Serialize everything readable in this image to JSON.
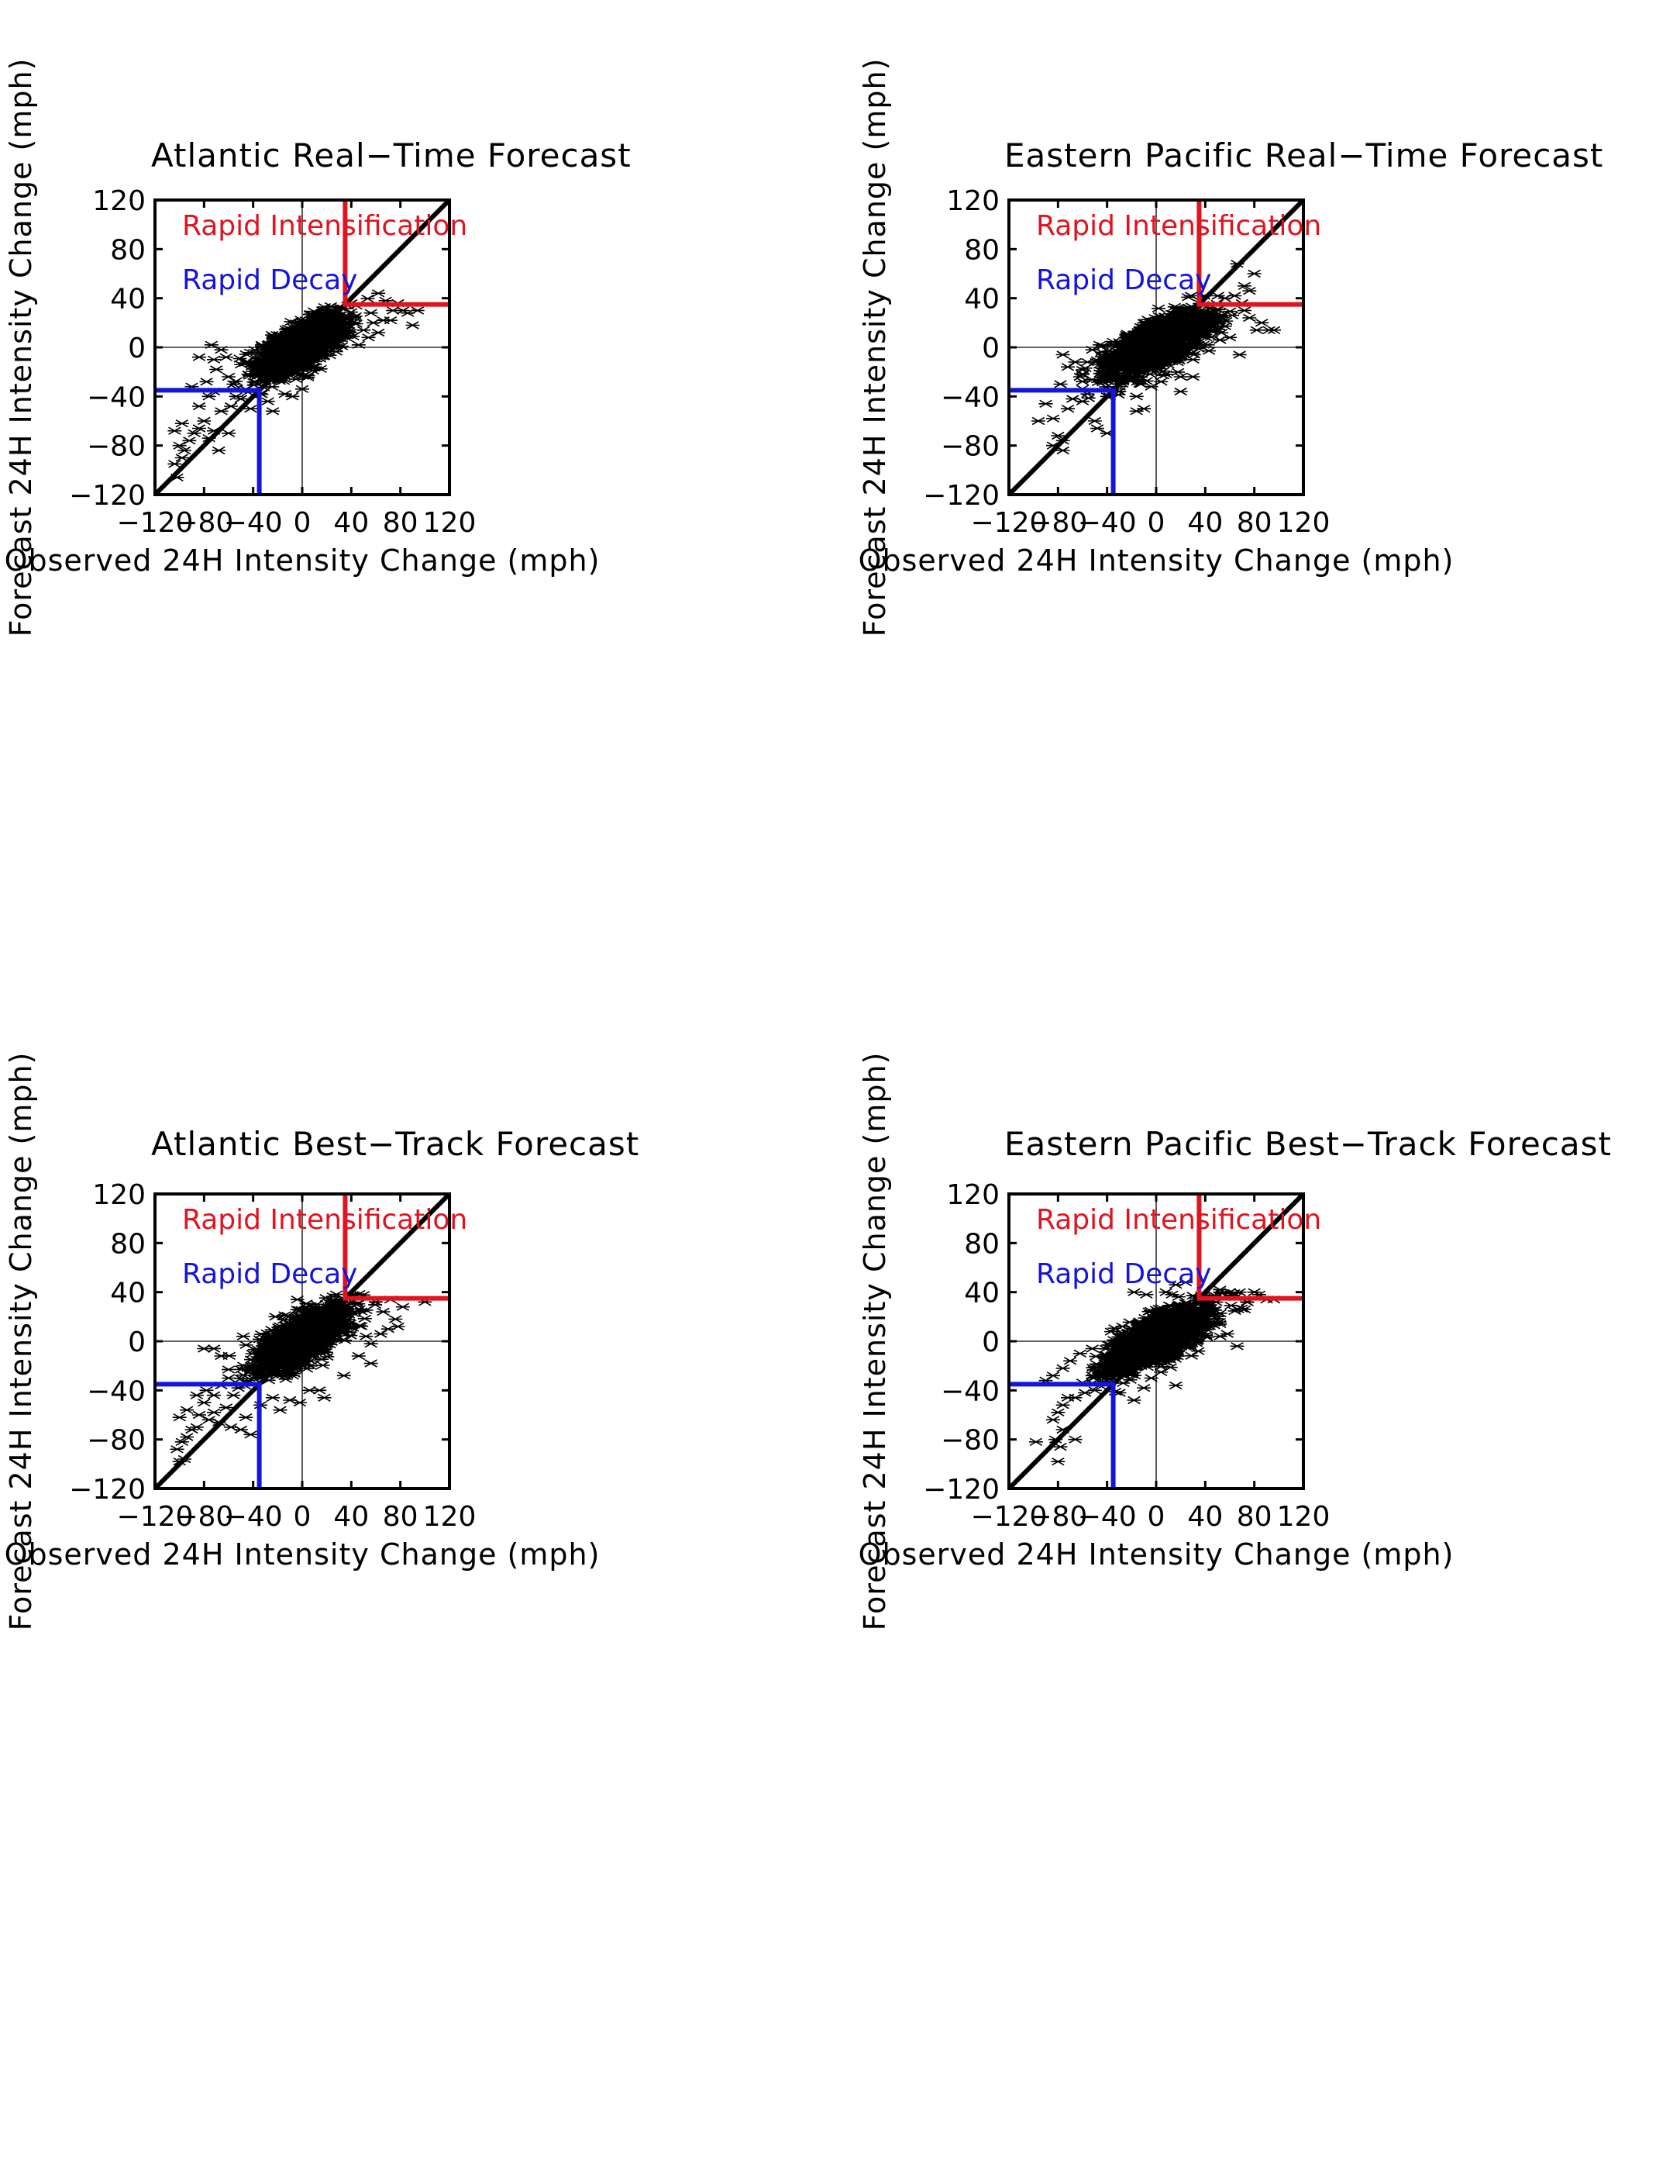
{
  "chart_data": [
    {
      "type": "scatter",
      "title": "Atlantic Real−Time Forecast",
      "xlabel": "Observed 24H Intensity Change (mph)",
      "ylabel": "Forecast 24H Intensity Change (mph)",
      "xlim": [
        -120,
        120
      ],
      "ylim": [
        -120,
        120
      ],
      "xticks": [
        "−120",
        "−80",
        "−40",
        "0",
        "40",
        "80",
        "120"
      ],
      "yticks": [
        "−120",
        "−80",
        "−40",
        "0",
        "40",
        "80",
        "120"
      ],
      "legend": [
        {
          "label": "Rapid Intensification",
          "color": "#e0141e"
        },
        {
          "label": "Rapid Decay",
          "color": "#1414dc"
        }
      ],
      "legend_position": "top-left",
      "thresholds": {
        "rapid_intensification": 35,
        "rapid_decay": -35
      },
      "cloud": {
        "x_mean": 0,
        "x_sd": 17,
        "slope": 0.48,
        "y_sd": 8.5,
        "n": 1600
      },
      "outliers": [
        [
          -102,
          -106
        ],
        [
          -104,
          -95
        ],
        [
          -98,
          -90
        ],
        [
          -96,
          -84
        ],
        [
          -100,
          -80
        ],
        [
          -92,
          -76
        ],
        [
          -104,
          -68
        ],
        [
          -98,
          -62
        ],
        [
          -88,
          -70
        ],
        [
          -84,
          -66
        ],
        [
          -80,
          -60
        ],
        [
          -76,
          -74
        ],
        [
          -72,
          -68
        ],
        [
          -68,
          -84
        ],
        [
          -84,
          -48
        ],
        [
          -76,
          -40
        ],
        [
          -72,
          -36
        ],
        [
          -78,
          -28
        ],
        [
          -70,
          -18
        ],
        [
          -72,
          -10
        ],
        [
          -62,
          -8
        ],
        [
          -74,
          2
        ],
        [
          -66,
          -2
        ],
        [
          -84,
          -8
        ],
        [
          -90,
          -32
        ],
        [
          -60,
          -70
        ],
        [
          -66,
          -52
        ],
        [
          -58,
          -48
        ],
        [
          -54,
          -40
        ],
        [
          -50,
          -42
        ],
        [
          -56,
          -30
        ],
        [
          -60,
          -24
        ],
        [
          -46,
          -34
        ],
        [
          -42,
          -50
        ],
        [
          -24,
          -52
        ],
        [
          -14,
          -38
        ],
        [
          -8,
          -40
        ],
        [
          0,
          -34
        ],
        [
          -28,
          -44
        ],
        [
          62,
          44
        ],
        [
          68,
          38
        ],
        [
          78,
          36
        ],
        [
          82,
          30
        ],
        [
          86,
          28
        ],
        [
          94,
          30
        ],
        [
          90,
          18
        ],
        [
          66,
          22
        ],
        [
          58,
          20
        ],
        [
          62,
          12
        ],
        [
          72,
          22
        ],
        [
          50,
          14
        ],
        [
          54,
          8
        ],
        [
          44,
          34
        ],
        [
          40,
          36
        ],
        [
          46,
          2
        ],
        [
          56,
          28
        ],
        [
          74,
          30
        ]
      ]
    },
    {
      "type": "scatter",
      "title": "Eastern Pacific Real−Time Forecast",
      "xlabel": "Observed 24H Intensity Change (mph)",
      "ylabel": "Forecast 24H Intensity Change (mph)",
      "xlim": [
        -120,
        120
      ],
      "ylim": [
        -120,
        120
      ],
      "xticks": [
        "−120",
        "−80",
        "−40",
        "0",
        "40",
        "80",
        "120"
      ],
      "yticks": [
        "−120",
        "−80",
        "−40",
        "0",
        "40",
        "80",
        "120"
      ],
      "legend": [
        {
          "label": "Rapid Intensification",
          "color": "#e0141e"
        },
        {
          "label": "Rapid Decay",
          "color": "#1414dc"
        }
      ],
      "legend_position": "top-left",
      "thresholds": {
        "rapid_intensification": 35,
        "rapid_decay": -35
      },
      "cloud": {
        "x_mean": 2,
        "x_sd": 20,
        "slope": 0.46,
        "y_sd": 9,
        "n": 1700
      },
      "outliers": [
        [
          -96,
          -60
        ],
        [
          -84,
          -58
        ],
        [
          -80,
          -72
        ],
        [
          -76,
          -76
        ],
        [
          -76,
          -84
        ],
        [
          -84,
          -80
        ],
        [
          -90,
          -46
        ],
        [
          -72,
          -50
        ],
        [
          -68,
          -42
        ],
        [
          -60,
          -44
        ],
        [
          -56,
          -38
        ],
        [
          -72,
          -16
        ],
        [
          -76,
          -6
        ],
        [
          -78,
          -30
        ],
        [
          -62,
          -24
        ],
        [
          -66,
          -12
        ],
        [
          -56,
          -12
        ],
        [
          -52,
          -2
        ],
        [
          -46,
          2
        ],
        [
          -40,
          -40
        ],
        [
          -38,
          -40
        ],
        [
          -34,
          -34
        ],
        [
          -50,
          -60
        ],
        [
          -48,
          -66
        ],
        [
          -40,
          -70
        ],
        [
          -30,
          -32
        ],
        [
          -16,
          -52
        ],
        [
          -16,
          -40
        ],
        [
          -10,
          -50
        ],
        [
          -4,
          -32
        ],
        [
          4,
          -28
        ],
        [
          8,
          -22
        ],
        [
          20,
          -36
        ],
        [
          30,
          -24
        ],
        [
          66,
          68
        ],
        [
          80,
          60
        ],
        [
          72,
          50
        ],
        [
          76,
          46
        ],
        [
          64,
          42
        ],
        [
          56,
          40
        ],
        [
          86,
          20
        ],
        [
          92,
          14
        ],
        [
          96,
          14
        ],
        [
          82,
          14
        ],
        [
          76,
          24
        ],
        [
          72,
          30
        ],
        [
          68,
          -6
        ],
        [
          60,
          8
        ],
        [
          52,
          6
        ],
        [
          48,
          26
        ],
        [
          44,
          22
        ],
        [
          42,
          2
        ],
        [
          30,
          -10
        ],
        [
          20,
          -24
        ],
        [
          62,
          26
        ],
        [
          70,
          36
        ]
      ]
    },
    {
      "type": "scatter",
      "title": "Atlantic Best−Track Forecast",
      "xlabel": "Observed 24H Intensity Change (mph)",
      "ylabel": "Forecast 24H Intensity Change (mph)",
      "xlim": [
        -120,
        120
      ],
      "ylim": [
        -120,
        120
      ],
      "xticks": [
        "−120",
        "−80",
        "−40",
        "0",
        "40",
        "80",
        "120"
      ],
      "yticks": [
        "−120",
        "−80",
        "−40",
        "0",
        "40",
        "80",
        "120"
      ],
      "legend": [
        {
          "label": "Rapid Intensification",
          "color": "#e0141e"
        },
        {
          "label": "Rapid Decay",
          "color": "#1414dc"
        }
      ],
      "legend_position": "top-left",
      "thresholds": {
        "rapid_intensification": 35,
        "rapid_decay": -35
      },
      "cloud": {
        "x_mean": -1,
        "x_sd": 18,
        "slope": 0.5,
        "y_sd": 9,
        "n": 1650
      },
      "outliers": [
        [
          -100,
          -98
        ],
        [
          -102,
          -88
        ],
        [
          -96,
          -96
        ],
        [
          -98,
          -82
        ],
        [
          -94,
          -78
        ],
        [
          -90,
          -72
        ],
        [
          -86,
          -70
        ],
        [
          -100,
          -62
        ],
        [
          -94,
          -56
        ],
        [
          -84,
          -60
        ],
        [
          -80,
          -50
        ],
        [
          -76,
          -64
        ],
        [
          -72,
          -58
        ],
        [
          -68,
          -66
        ],
        [
          -62,
          -54
        ],
        [
          -58,
          -70
        ],
        [
          -50,
          -72
        ],
        [
          -46,
          -62
        ],
        [
          -42,
          -76
        ],
        [
          -86,
          -44
        ],
        [
          -78,
          -40
        ],
        [
          -72,
          -44
        ],
        [
          -66,
          -36
        ],
        [
          -60,
          -30
        ],
        [
          -56,
          -44
        ],
        [
          -52,
          -38
        ],
        [
          -80,
          -6
        ],
        [
          -72,
          -6
        ],
        [
          -66,
          -12
        ],
        [
          -48,
          4
        ],
        [
          -34,
          -52
        ],
        [
          -24,
          -46
        ],
        [
          -18,
          -56
        ],
        [
          -10,
          -48
        ],
        [
          -2,
          -50
        ],
        [
          6,
          -40
        ],
        [
          14,
          -40
        ],
        [
          18,
          -46
        ],
        [
          34,
          -28
        ],
        [
          60,
          32
        ],
        [
          72,
          34
        ],
        [
          82,
          28
        ],
        [
          100,
          32
        ],
        [
          76,
          18
        ],
        [
          78,
          12
        ],
        [
          70,
          10
        ],
        [
          64,
          6
        ],
        [
          56,
          -2
        ],
        [
          52,
          4
        ],
        [
          46,
          -12
        ],
        [
          56,
          -18
        ],
        [
          -4,
          34
        ],
        [
          30,
          32
        ],
        [
          44,
          30
        ],
        [
          66,
          24
        ]
      ]
    },
    {
      "type": "scatter",
      "title": "Eastern Pacific Best−Track Forecast",
      "xlabel": "Observed 24H Intensity Change (mph)",
      "ylabel": "Forecast 24H Intensity Change (mph)",
      "xlim": [
        -120,
        120
      ],
      "ylim": [
        -120,
        120
      ],
      "xticks": [
        "−120",
        "−80",
        "−40",
        "0",
        "40",
        "80",
        "120"
      ],
      "yticks": [
        "−120",
        "−80",
        "−40",
        "0",
        "40",
        "80",
        "120"
      ],
      "legend": [
        {
          "label": "Rapid Intensification",
          "color": "#e0141e"
        },
        {
          "label": "Rapid Decay",
          "color": "#1414dc"
        }
      ],
      "legend_position": "top-left",
      "thresholds": {
        "rapid_intensification": 35,
        "rapid_decay": -35
      },
      "cloud": {
        "x_mean": 3,
        "x_sd": 20,
        "slope": 0.45,
        "y_sd": 9,
        "n": 1700
      },
      "outliers": [
        [
          -98,
          -82
        ],
        [
          -80,
          -98
        ],
        [
          -78,
          -86
        ],
        [
          -82,
          -80
        ],
        [
          -66,
          -80
        ],
        [
          -76,
          -72
        ],
        [
          -84,
          -64
        ],
        [
          -80,
          -58
        ],
        [
          -76,
          -52
        ],
        [
          -72,
          -46
        ],
        [
          -90,
          -32
        ],
        [
          -84,
          -28
        ],
        [
          -76,
          -22
        ],
        [
          -70,
          -16
        ],
        [
          -62,
          -10
        ],
        [
          -52,
          -6
        ],
        [
          -66,
          -46
        ],
        [
          -58,
          -42
        ],
        [
          -50,
          -40
        ],
        [
          -52,
          -28
        ],
        [
          -46,
          -36
        ],
        [
          -40,
          -20
        ],
        [
          -18,
          -48
        ],
        [
          -30,
          -42
        ],
        [
          -10,
          -38
        ],
        [
          -4,
          -30
        ],
        [
          16,
          -36
        ],
        [
          -52,
          -34
        ],
        [
          52,
          40
        ],
        [
          60,
          40
        ],
        [
          68,
          40
        ],
        [
          80,
          40
        ],
        [
          84,
          38
        ],
        [
          90,
          34
        ],
        [
          96,
          34
        ],
        [
          72,
          26
        ],
        [
          66,
          -4
        ],
        [
          58,
          6
        ],
        [
          52,
          14
        ],
        [
          24,
          48
        ],
        [
          16,
          46
        ],
        [
          8,
          40
        ],
        [
          -8,
          38
        ],
        [
          -18,
          40
        ],
        [
          40,
          28
        ],
        [
          74,
          32
        ]
      ]
    }
  ]
}
